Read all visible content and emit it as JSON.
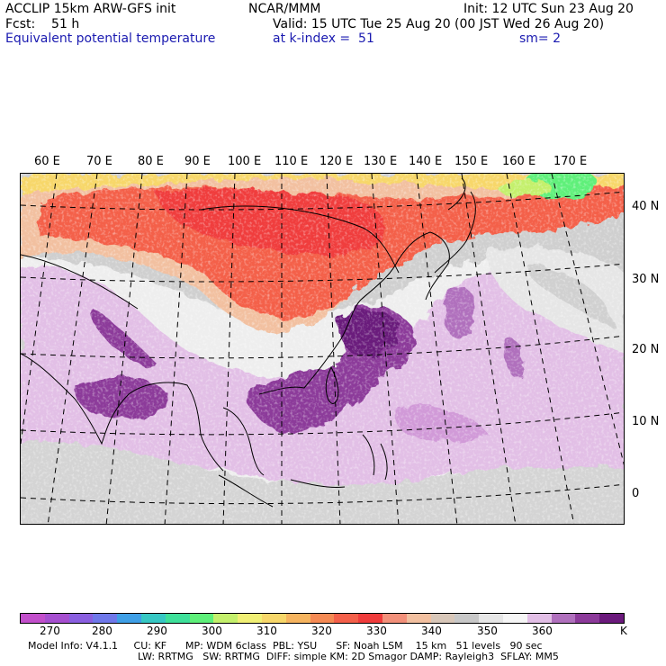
{
  "header": {
    "line1_left": "ACCLIP 15km ARW-GFS init",
    "line1_center": "NCAR/MMM",
    "line1_right": "Init: 12 UTC Sun 23 Aug 20",
    "line2_left": "Fcst:    51 h",
    "line2_right": "Valid: 15 UTC Tue 25 Aug 20 (00 JST Wed 26 Aug 20)",
    "line3_left": "Equivalent potential temperature",
    "line3_center": "at k-index =  51",
    "line3_right": "sm= 2"
  },
  "map": {
    "lon_labels": [
      "60 E",
      "70 E",
      "80 E",
      "90 E",
      "100 E",
      "110 E",
      "120 E",
      "130 E",
      "140 E",
      "150 E",
      "160 E",
      "170 E"
    ],
    "lat_labels": [
      "40 N",
      "30 N",
      "20 N",
      "10 N",
      "0"
    ]
  },
  "colorbar": {
    "colors": [
      "#c24fcb",
      "#a64fd0",
      "#8a5fe0",
      "#6f78ea",
      "#3f9fe6",
      "#37c8c4",
      "#3ee09a",
      "#5ef07a",
      "#c4f06c",
      "#f1f075",
      "#f7d76a",
      "#f6b45f",
      "#f58a54",
      "#f4604a",
      "#f03c3c",
      "#f2907a",
      "#f2c0a0",
      "#d8c7b9",
      "#c8c8c8",
      "#e6e6e6",
      "#f6f6f6",
      "#e2bfe6",
      "#b070bd",
      "#8c3a9a",
      "#6b1a7c"
    ],
    "ticks": [
      "270",
      "280",
      "290",
      "300",
      "310",
      "320",
      "330",
      "340",
      "350",
      "360",
      "K"
    ]
  },
  "footer": {
    "line1": "Model Info: V4.1.1     CU: KF      MP: WDM 6class  PBL: YSU      SF: Noah LSM    15 km   51 levels   90 sec",
    "line2": "LW: RRTMG   SW: RRTMG  DIFF: simple KM: 2D Smagor DAMP: Rayleigh3  SFLAY: MM5"
  }
}
